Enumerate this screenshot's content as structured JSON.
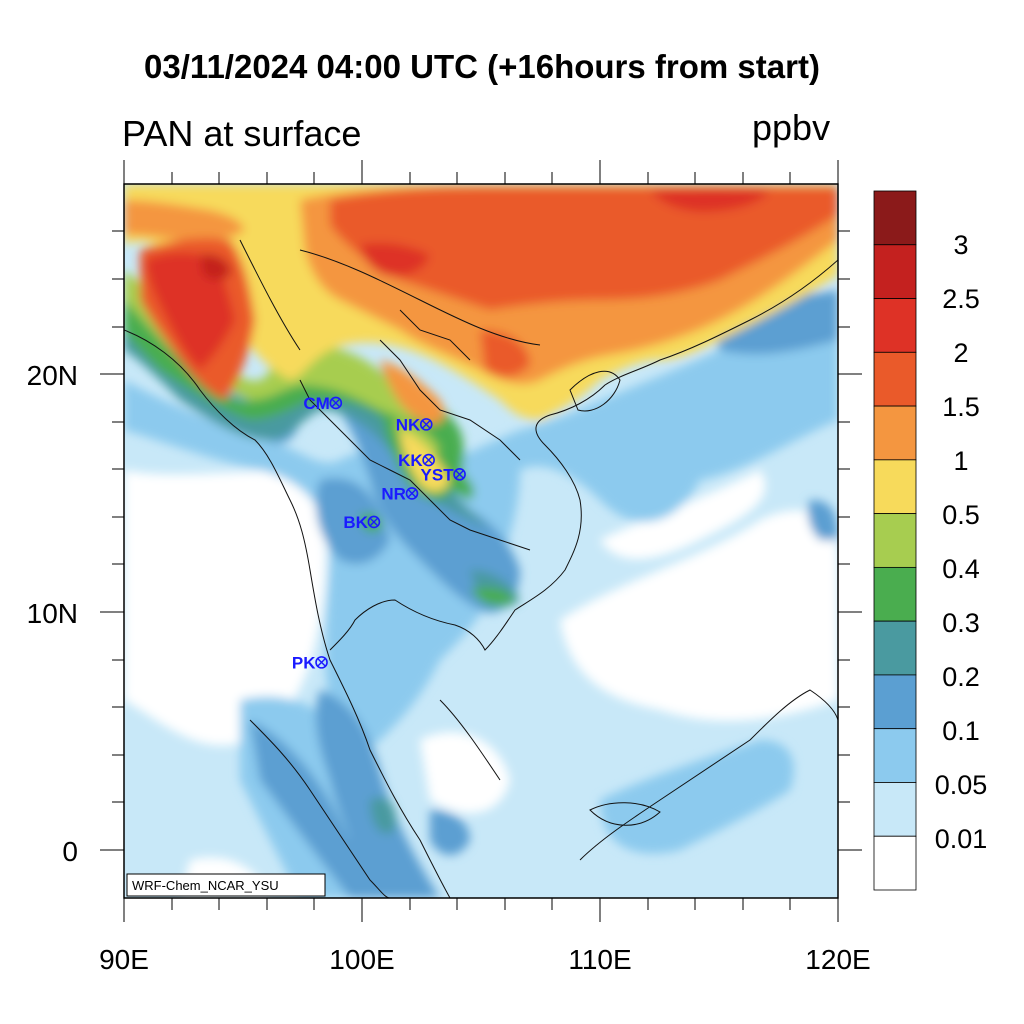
{
  "title": "03/11/2024 04:00 UTC (+16hours from start)",
  "subtitle_left": "PAN at surface",
  "units": "ppbv",
  "credit": "WRF-Chem_NCAR_YSU",
  "map": {
    "lon_range": [
      90,
      120
    ],
    "lat_range": [
      -2,
      28
    ],
    "x_ticks": [
      {
        "value": 90,
        "label": "90E"
      },
      {
        "value": 100,
        "label": "100E"
      },
      {
        "value": 110,
        "label": "110E"
      },
      {
        "value": 120,
        "label": "120E"
      }
    ],
    "y_ticks": [
      {
        "value": 20,
        "label": "20N"
      },
      {
        "value": 10,
        "label": "10N"
      },
      {
        "value": 0,
        "label": "0"
      }
    ]
  },
  "colorbar": {
    "labels": [
      "3",
      "2.5",
      "2",
      "1.5",
      "1",
      "0.5",
      "0.4",
      "0.3",
      "0.2",
      "0.1",
      "0.05",
      "0.01"
    ],
    "colors": [
      "#8b1a1a",
      "#c4211f",
      "#de3226",
      "#ea5a2a",
      "#f49640",
      "#f7da5b",
      "#a7cd50",
      "#4aad4f",
      "#4a9aa0",
      "#5b9fd2",
      "#8ccaee",
      "#c8e8f8",
      "#ffffff"
    ]
  },
  "stations": [
    {
      "name": "CM",
      "lon": 98.9,
      "lat": 18.8
    },
    {
      "name": "NK",
      "lon": 102.7,
      "lat": 17.9
    },
    {
      "name": "KK",
      "lon": 102.8,
      "lat": 16.4
    },
    {
      "name": "YST",
      "lon": 104.1,
      "lat": 15.8
    },
    {
      "name": "NR",
      "lon": 102.1,
      "lat": 15.0
    },
    {
      "name": "BK",
      "lon": 100.5,
      "lat": 13.8
    },
    {
      "name": "PK",
      "lon": 98.3,
      "lat": 7.9
    }
  ]
}
